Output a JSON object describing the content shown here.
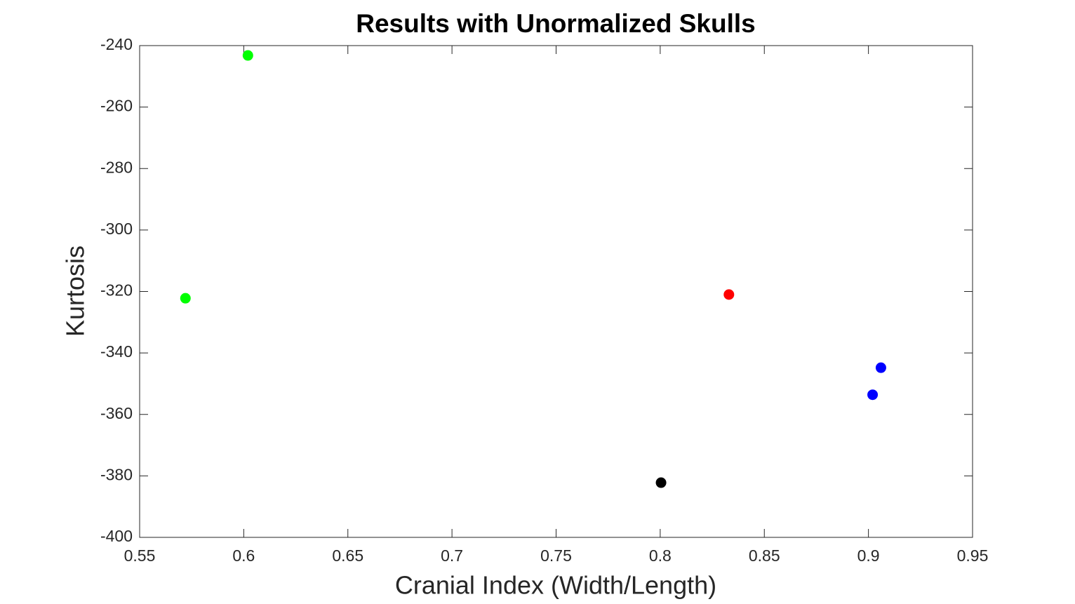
{
  "chart_data": {
    "type": "scatter",
    "title": "Results with Unormalized Skulls",
    "xlabel": "Cranial Index (Width/Length)",
    "ylabel": "Kurtosis",
    "x": [
      0.602,
      0.572,
      0.833,
      0.906,
      0.902,
      0.8004
    ],
    "values": [
      -243.2,
      -322.2,
      -321.0,
      -344.8,
      -353.6,
      -382.2
    ],
    "colors": [
      "#00ff00",
      "#00ff00",
      "#ff0000",
      "#0000ff",
      "#0000ff",
      "#000000"
    ],
    "xlim": [
      0.55,
      0.95
    ],
    "xticks": [
      0.55,
      0.6,
      0.65,
      0.7,
      0.75,
      0.8,
      0.85,
      0.9,
      0.95
    ],
    "ylim": [
      -400,
      -240
    ],
    "yticks": [
      -400,
      -380,
      -360,
      -340,
      -320,
      -300,
      -280,
      -260,
      -240
    ],
    "grid": false
  }
}
